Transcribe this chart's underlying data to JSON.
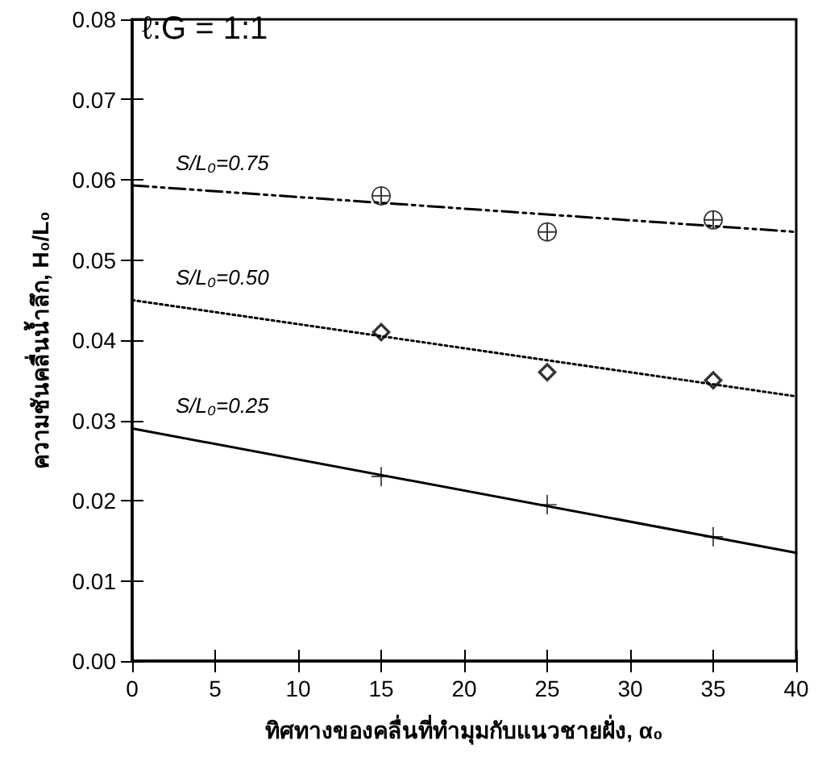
{
  "chart_data": {
    "type": "scatter",
    "xlabel": "ทิศทางของคลื่นที่ทำมุมกับแนวชายฝั่ง, α₀",
    "ylabel": "ความชันคลื่นน้ำลึก, H₀/L₀",
    "annotations": [
      "ℓ:G = 1:1"
    ],
    "xlim": [
      0,
      40
    ],
    "xticks": [
      0,
      5,
      10,
      15,
      20,
      25,
      30,
      35,
      40
    ],
    "ylim": [
      0,
      0.08
    ],
    "yticks": [
      {
        "value": 0,
        "label": "0.00"
      },
      {
        "value": 0.01,
        "label": "0.01"
      },
      {
        "value": 0.02,
        "label": "0.02"
      },
      {
        "value": 0.03,
        "label": "0.03"
      },
      {
        "value": 0.04,
        "label": "0.04"
      },
      {
        "value": 0.05,
        "label": "0.05"
      },
      {
        "value": 0.06,
        "label": "0.06"
      },
      {
        "value": 0.07,
        "label": "0.07"
      },
      {
        "value": 0.08,
        "label": "0.08"
      }
    ],
    "grid": false,
    "legend": false,
    "series": [
      {
        "type": "scatter",
        "marker": "circle",
        "color": "#000000",
        "x": [
          15,
          25,
          35
        ],
        "values": [
          0.058,
          0.0535,
          0.055
        ]
      },
      {
        "type": "scatter",
        "marker": "diamond",
        "color": "#000000",
        "x": [
          15,
          25,
          35
        ],
        "values": [
          0.041,
          0.036,
          0.035
        ]
      },
      {
        "type": "scatter",
        "marker": "cross",
        "color": "#000000",
        "x": [
          15,
          25,
          35
        ],
        "values": [
          0.023,
          0.0195,
          0.0155
        ]
      },
      {
        "type": "line",
        "name": "S/L₀=0.75",
        "line_style": "dashed",
        "color": "#000000",
        "x": [
          0,
          40
        ],
        "values": [
          0.0593,
          0.0535
        ]
      },
      {
        "type": "line",
        "name": "S/L₀=0.50",
        "line_style": "dotted",
        "color": "#000000",
        "x": [
          0,
          40
        ],
        "values": [
          0.045,
          0.033
        ]
      },
      {
        "type": "line",
        "name": "S/L₀=0.25",
        "line_style": "solid",
        "color": "#000000",
        "x": [
          0,
          40
        ],
        "values": [
          0.029,
          0.0135
        ]
      }
    ]
  }
}
